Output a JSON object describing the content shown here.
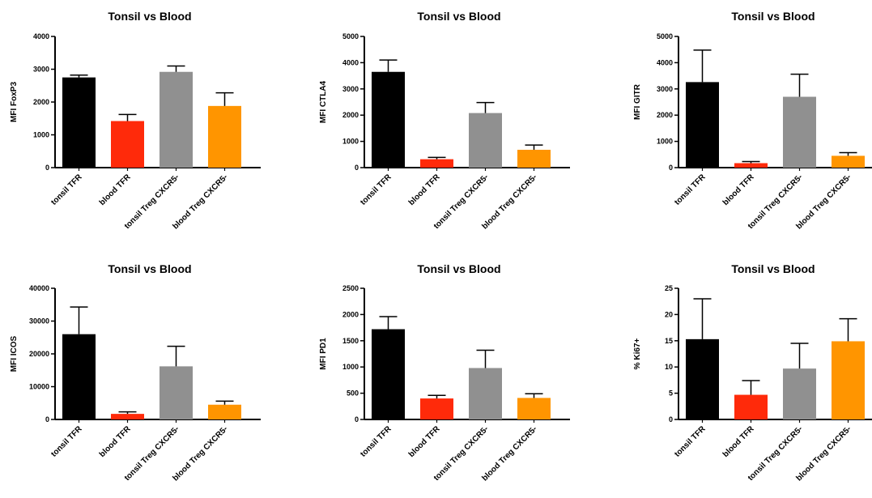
{
  "chart_data": [
    {
      "type": "bar",
      "title": "Tonsil vs Blood",
      "ylabel": "MFI FoxP3",
      "xlabel": "",
      "categories": [
        "tonsil TFR",
        "blood TFR",
        "tonsil Treg CXCR5-",
        "blood Treg CXCR5-"
      ],
      "values": [
        2750,
        1420,
        2920,
        1880
      ],
      "error_upper": [
        2820,
        1620,
        3100,
        2280
      ],
      "ylim": [
        0,
        4000
      ],
      "yticks": [
        0,
        1000,
        2000,
        3000,
        4000
      ],
      "ytick_labels": [
        "0",
        "1000",
        "2000",
        "3000",
        "4000"
      ],
      "colors": [
        "#000000",
        "#ff2a0a",
        "#909090",
        "#ff9500"
      ],
      "grid": false,
      "legend": "none"
    },
    {
      "type": "bar",
      "title": "Tonsil vs Blood",
      "ylabel": "MFI CTLA4",
      "xlabel": "",
      "categories": [
        "tonsil TFR",
        "blood TFR",
        "tonsil Treg CXCR5-",
        "blood Treg CXCR5-"
      ],
      "values": [
        3650,
        320,
        2080,
        680
      ],
      "error_upper": [
        4100,
        390,
        2480,
        860
      ],
      "ylim": [
        0,
        5000
      ],
      "yticks": [
        0,
        1000,
        2000,
        3000,
        4000,
        5000
      ],
      "ytick_labels": [
        "0",
        "1000",
        "2000",
        "3000",
        "4000",
        "5000"
      ],
      "colors": [
        "#000000",
        "#ff2a0a",
        "#909090",
        "#ff9500"
      ],
      "grid": false,
      "legend": "none"
    },
    {
      "type": "bar",
      "title": "Tonsil vs Blood",
      "ylabel": "MFI GITR",
      "xlabel": "",
      "categories": [
        "tonsil TFR",
        "blood TFR",
        "tonsil Treg CXCR5-",
        "blood Treg CXCR5-"
      ],
      "values": [
        3260,
        170,
        2700,
        450
      ],
      "error_upper": [
        4480,
        230,
        3560,
        570
      ],
      "ylim": [
        0,
        5000
      ],
      "yticks": [
        0,
        1000,
        2000,
        3000,
        4000,
        5000
      ],
      "ytick_labels": [
        "0",
        "1000",
        "2000",
        "3000",
        "4000",
        "5000"
      ],
      "colors": [
        "#000000",
        "#ff2a0a",
        "#909090",
        "#ff9500"
      ],
      "grid": false,
      "legend": "none"
    },
    {
      "type": "bar",
      "title": "Tonsil vs Blood",
      "ylabel": "MFI ICOS",
      "xlabel": "",
      "categories": [
        "tonsil TFR",
        "blood TFR",
        "tonsil Treg CXCR5-",
        "blood Treg CXCR5-"
      ],
      "values": [
        26000,
        1700,
        16200,
        4500
      ],
      "error_upper": [
        34300,
        2300,
        22300,
        5600
      ],
      "ylim": [
        0,
        40000
      ],
      "yticks": [
        0,
        10000,
        20000,
        30000,
        40000
      ],
      "ytick_labels": [
        "0",
        "10000",
        "20000",
        "30000",
        "40000"
      ],
      "colors": [
        "#000000",
        "#ff2a0a",
        "#909090",
        "#ff9500"
      ],
      "grid": false,
      "legend": "none"
    },
    {
      "type": "bar",
      "title": "Tonsil vs Blood",
      "ylabel": "MFI PD1",
      "xlabel": "",
      "categories": [
        "tonsil TFR",
        "blood TFR",
        "tonsil Treg CXCR5-",
        "blood Treg CXCR5-"
      ],
      "values": [
        1720,
        400,
        980,
        410
      ],
      "error_upper": [
        1960,
        460,
        1320,
        490
      ],
      "ylim": [
        0,
        2500
      ],
      "yticks": [
        0,
        500,
        1000,
        1500,
        2000,
        2500
      ],
      "ytick_labels": [
        "0",
        "500",
        "1000",
        "1500",
        "2000",
        "2500"
      ],
      "colors": [
        "#000000",
        "#ff2a0a",
        "#909090",
        "#ff9500"
      ],
      "grid": false,
      "legend": "none"
    },
    {
      "type": "bar",
      "title": "Tonsil vs Blood",
      "ylabel": "% Ki67+",
      "xlabel": "",
      "categories": [
        "tonsil TFR",
        "blood TFR",
        "tonsil Treg CXCR5-",
        "blood Treg CXCR5-"
      ],
      "values": [
        15.3,
        4.7,
        9.7,
        14.9
      ],
      "error_upper": [
        23.0,
        7.4,
        14.5,
        19.2
      ],
      "ylim": [
        0,
        25
      ],
      "yticks": [
        0,
        5,
        10,
        15,
        20,
        25
      ],
      "ytick_labels": [
        "0",
        "5",
        "10",
        "15",
        "20",
        "25"
      ],
      "colors": [
        "#000000",
        "#ff2a0a",
        "#909090",
        "#ff9500"
      ],
      "grid": false,
      "legend": "none"
    }
  ]
}
